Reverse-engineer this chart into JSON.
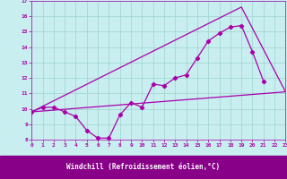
{
  "xlabel": "Windchill (Refroidissement éolien,°C)",
  "xlim": [
    0,
    23
  ],
  "ylim": [
    8,
    17
  ],
  "xticks": [
    0,
    1,
    2,
    3,
    4,
    5,
    6,
    7,
    8,
    9,
    10,
    11,
    12,
    13,
    14,
    15,
    16,
    17,
    18,
    19,
    20,
    21,
    22,
    23
  ],
  "yticks": [
    8,
    9,
    10,
    11,
    12,
    13,
    14,
    15,
    16,
    17
  ],
  "bg_color": "#c8eef0",
  "grid_color": "#9fd4cc",
  "line_color": "#aa00aa",
  "xlabel_bg": "#880088",
  "series_data": {
    "x": [
      0,
      1,
      2,
      3,
      4,
      5,
      6,
      7,
      8,
      9,
      10,
      11,
      12,
      13,
      14,
      15,
      16,
      17,
      18,
      19,
      20,
      21
    ],
    "y": [
      9.8,
      10.1,
      10.1,
      9.8,
      9.5,
      8.6,
      8.1,
      8.1,
      9.6,
      10.4,
      10.1,
      11.6,
      11.5,
      12.0,
      12.2,
      13.3,
      14.4,
      14.9,
      15.3,
      15.4,
      13.7,
      11.8
    ]
  },
  "line_flat": {
    "x": [
      0,
      23
    ],
    "y": [
      9.8,
      11.1
    ]
  },
  "line_peak": {
    "x": [
      0,
      19,
      23
    ],
    "y": [
      9.8,
      16.6,
      11.1
    ]
  }
}
